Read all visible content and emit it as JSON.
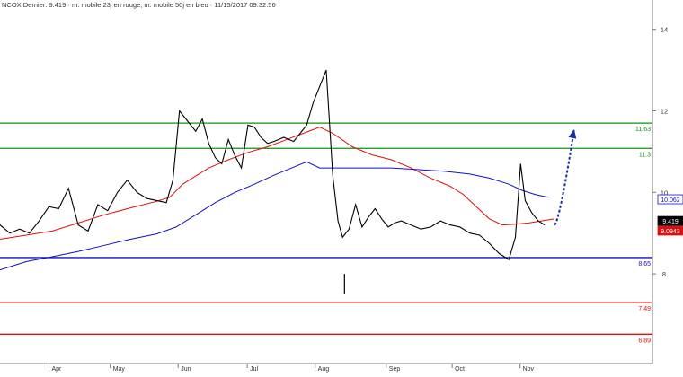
{
  "header": {
    "text": "NCOX Dernier: 9.419 · m. mobile 23j en rouge, m. mobile 50j en bleu · 11/15/2017 09:32:56"
  },
  "chart_data": {
    "type": "line",
    "title": "NCOX Dernier: 9.419 · m. mobile 23j en rouge, m. mobile 50j en bleu · 11/15/2017 09:32:56",
    "ylim": [
      5.8,
      14.5
    ],
    "xlim": [
      0,
      100
    ],
    "x_tick_labels": [
      {
        "x": 7.5,
        "label": "Apr"
      },
      {
        "x": 16.9,
        "label": "May"
      },
      {
        "x": 27.3,
        "label": "Jun"
      },
      {
        "x": 37.9,
        "label": "Jul"
      },
      {
        "x": 48.3,
        "label": "Aug"
      },
      {
        "x": 59.2,
        "label": "Sep"
      },
      {
        "x": 69.3,
        "label": "Oct"
      },
      {
        "x": 79.7,
        "label": "Nov"
      }
    ],
    "y_ticks": [
      {
        "value": 14,
        "label": "14"
      },
      {
        "value": 12,
        "label": "12"
      },
      {
        "value": 10,
        "label": "10"
      },
      {
        "value": 8,
        "label": "8"
      }
    ],
    "horizontal_levels": [
      {
        "value": 11.7,
        "label": "11.63",
        "color": "#109010"
      },
      {
        "value": 11.08,
        "label": "11.3",
        "color": "#109010"
      },
      {
        "value": 8.4,
        "label": "8.65",
        "color": "#1010c8"
      },
      {
        "value": 7.3,
        "label": "7.49",
        "color": "#dd1010"
      },
      {
        "value": 6.52,
        "label": "6.89",
        "color": "#dd1010"
      }
    ],
    "value_tags": [
      {
        "value": 9.83,
        "label": "10.062",
        "bg": "#ffffff",
        "fg": "#1010c8",
        "border": "#1010c8"
      },
      {
        "value": 9.3,
        "label": "9.419",
        "bg": "#000000",
        "fg": "#ffffff",
        "border": "#000000"
      },
      {
        "value": 9.06,
        "label": "9.0943",
        "bg": "#dd1010",
        "fg": "#ffffff",
        "border": "#dd1010"
      }
    ],
    "series": [
      {
        "name": "m. mobile 23j",
        "color": "#dd1010",
        "points": [
          [
            0,
            8.85
          ],
          [
            4,
            8.95
          ],
          [
            8,
            9.05
          ],
          [
            12,
            9.25
          ],
          [
            16,
            9.45
          ],
          [
            20,
            9.62
          ],
          [
            24,
            9.78
          ],
          [
            26,
            9.88
          ],
          [
            28,
            10.2
          ],
          [
            30,
            10.4
          ],
          [
            32,
            10.6
          ],
          [
            35,
            10.8
          ],
          [
            38,
            10.98
          ],
          [
            41,
            11.12
          ],
          [
            44,
            11.3
          ],
          [
            47,
            11.48
          ],
          [
            49,
            11.6
          ],
          [
            51,
            11.45
          ],
          [
            54,
            11.12
          ],
          [
            57,
            10.92
          ],
          [
            60,
            10.8
          ],
          [
            63,
            10.6
          ],
          [
            66,
            10.35
          ],
          [
            69,
            10.15
          ],
          [
            71,
            9.95
          ],
          [
            73,
            9.65
          ],
          [
            75,
            9.35
          ],
          [
            77,
            9.2
          ],
          [
            79,
            9.22
          ],
          [
            81,
            9.25
          ],
          [
            83,
            9.3
          ],
          [
            85,
            9.35
          ]
        ]
      },
      {
        "name": "m. mobile 50j",
        "color": "#1010c8",
        "points": [
          [
            0,
            8.1
          ],
          [
            4,
            8.3
          ],
          [
            8,
            8.42
          ],
          [
            12,
            8.55
          ],
          [
            16,
            8.7
          ],
          [
            20,
            8.85
          ],
          [
            24,
            8.98
          ],
          [
            27,
            9.15
          ],
          [
            30,
            9.45
          ],
          [
            33,
            9.75
          ],
          [
            36,
            10.0
          ],
          [
            39,
            10.2
          ],
          [
            42,
            10.42
          ],
          [
            45,
            10.62
          ],
          [
            47,
            10.75
          ],
          [
            49,
            10.6
          ],
          [
            52,
            10.6
          ],
          [
            56,
            10.6
          ],
          [
            60,
            10.6
          ],
          [
            64,
            10.56
          ],
          [
            68,
            10.52
          ],
          [
            72,
            10.45
          ],
          [
            75,
            10.35
          ],
          [
            78,
            10.2
          ],
          [
            80,
            10.05
          ],
          [
            82,
            9.95
          ],
          [
            84,
            9.88
          ]
        ]
      },
      {
        "name": "price",
        "color": "#000000",
        "points": [
          [
            0,
            9.2
          ],
          [
            1.5,
            9.0
          ],
          [
            3,
            9.1
          ],
          [
            4.5,
            9.0
          ],
          [
            6,
            9.3
          ],
          [
            7.5,
            9.65
          ],
          [
            9,
            9.6
          ],
          [
            10.5,
            10.1
          ],
          [
            12,
            9.2
          ],
          [
            13.5,
            9.05
          ],
          [
            15,
            9.7
          ],
          [
            16.5,
            9.55
          ],
          [
            18,
            10.0
          ],
          [
            19.5,
            10.3
          ],
          [
            21,
            10.0
          ],
          [
            22.5,
            9.85
          ],
          [
            24,
            9.8
          ],
          [
            25.5,
            9.75
          ],
          [
            26.5,
            10.3
          ],
          [
            27.5,
            12.0
          ],
          [
            28.5,
            11.8
          ],
          [
            30,
            11.5
          ],
          [
            31,
            11.8
          ],
          [
            32,
            11.2
          ],
          [
            33,
            10.85
          ],
          [
            34,
            10.7
          ],
          [
            35,
            11.3
          ],
          [
            36,
            10.9
          ],
          [
            37,
            10.6
          ],
          [
            38,
            11.65
          ],
          [
            39,
            11.6
          ],
          [
            40,
            11.35
          ],
          [
            41,
            11.2
          ],
          [
            42,
            11.25
          ],
          [
            43.5,
            11.35
          ],
          [
            45,
            11.25
          ],
          [
            46,
            11.45
          ],
          [
            47,
            11.65
          ],
          [
            48,
            12.2
          ],
          [
            49,
            12.6
          ],
          [
            50,
            13.0
          ],
          [
            51,
            10.4
          ],
          [
            51.8,
            9.3
          ],
          [
            52.5,
            8.9
          ],
          [
            53.5,
            9.1
          ],
          [
            54.5,
            9.7
          ],
          [
            55.5,
            9.15
          ],
          [
            56.5,
            9.4
          ],
          [
            57.5,
            9.6
          ],
          [
            58.5,
            9.35
          ],
          [
            59.5,
            9.15
          ],
          [
            60.5,
            9.25
          ],
          [
            61.5,
            9.3
          ],
          [
            63,
            9.2
          ],
          [
            64.5,
            9.1
          ],
          [
            66,
            9.15
          ],
          [
            67.5,
            9.3
          ],
          [
            69,
            9.2
          ],
          [
            70.5,
            9.15
          ],
          [
            72,
            9.0
          ],
          [
            73.5,
            8.95
          ],
          [
            75,
            8.75
          ],
          [
            76.5,
            8.5
          ],
          [
            78,
            8.35
          ],
          [
            79,
            8.9
          ],
          [
            79.8,
            10.7
          ],
          [
            80.5,
            9.8
          ],
          [
            81.5,
            9.5
          ],
          [
            82.5,
            9.3
          ],
          [
            83.5,
            9.2
          ]
        ]
      }
    ],
    "annotations": [
      {
        "type": "spike",
        "x": 52.8,
        "low": 7.5,
        "high": 8.0
      },
      {
        "type": "arrow",
        "from": [
          85.0,
          9.2
        ],
        "to": [
          88.0,
          11.55
        ],
        "color": "#1a2fa0"
      }
    ]
  }
}
